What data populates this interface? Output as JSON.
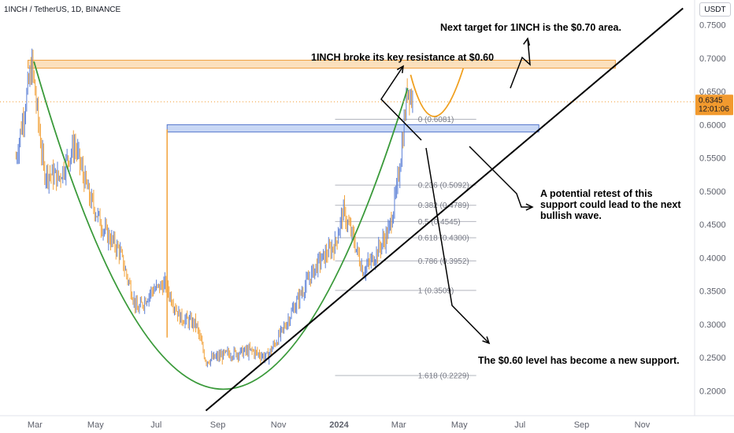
{
  "header": {
    "title": "1INCH / TetherUS, 1D, BINANCE",
    "unit": "USDT"
  },
  "price_tag": {
    "value": "0.6345",
    "countdown": "12:01:06"
  },
  "colors": {
    "up": "#5b7fd6",
    "down": "#f2a23a",
    "green_curve": "#3a9a3a",
    "orange_curve": "#f0a020",
    "resistance_box_fill": "#fbe0bd",
    "resistance_box_stroke": "#f0a040",
    "support_box_fill": "#c9d8f5",
    "support_box_stroke": "#5577cc",
    "trendline": "#000000",
    "price_tag_bg": "#f29a2e"
  },
  "annotations": {
    "next_target": "Next target for 1INCH is the $0.70 area.",
    "broke_resistance": "1INCH broke its key resistance at $0.60",
    "retest_line1": "A potential retest of this",
    "retest_line2": "support could lead to the next",
    "retest_line3": "bullish wave.",
    "new_support": "The $0.60 level has become a new support."
  },
  "chart_data": {
    "type": "candlestick",
    "title": "1INCH / TetherUS, 1D, BINANCE",
    "ylabel": "USDT",
    "ylim": [
      0.1625,
      0.7875
    ],
    "y_ticks": [
      "0.2000",
      "0.2500",
      "0.3000",
      "0.3500",
      "0.4000",
      "0.4500",
      "0.5000",
      "0.5500",
      "0.6000",
      "0.6500",
      "0.7000",
      "0.7500"
    ],
    "x_ticks": [
      "Mar",
      "May",
      "Jul",
      "Sep",
      "Nov",
      "2024",
      "Mar",
      "May",
      "Jul",
      "Sep",
      "Nov"
    ],
    "last_price": 0.6345,
    "price_path": [
      {
        "date": "2023-02-10",
        "price": 0.55
      },
      {
        "date": "2023-02-26",
        "price": 0.69
      },
      {
        "date": "2023-03-10",
        "price": 0.53
      },
      {
        "date": "2023-03-25",
        "price": 0.52
      },
      {
        "date": "2023-04-10",
        "price": 0.57
      },
      {
        "date": "2023-04-25",
        "price": 0.49
      },
      {
        "date": "2023-05-10",
        "price": 0.44
      },
      {
        "date": "2023-05-25",
        "price": 0.41
      },
      {
        "date": "2023-06-12",
        "price": 0.32
      },
      {
        "date": "2023-06-26",
        "price": 0.35
      },
      {
        "date": "2023-07-10",
        "price": 0.36
      },
      {
        "date": "2023-07-25",
        "price": 0.31
      },
      {
        "date": "2023-08-10",
        "price": 0.3
      },
      {
        "date": "2023-08-20",
        "price": 0.245
      },
      {
        "date": "2023-09-10",
        "price": 0.255
      },
      {
        "date": "2023-10-05",
        "price": 0.26
      },
      {
        "date": "2023-10-20",
        "price": 0.25
      },
      {
        "date": "2023-11-05",
        "price": 0.29
      },
      {
        "date": "2023-11-25",
        "price": 0.35
      },
      {
        "date": "2023-12-10",
        "price": 0.39
      },
      {
        "date": "2023-12-28",
        "price": 0.42
      },
      {
        "date": "2024-01-05",
        "price": 0.47
      },
      {
        "date": "2024-01-15",
        "price": 0.43
      },
      {
        "date": "2024-01-25",
        "price": 0.38
      },
      {
        "date": "2024-02-05",
        "price": 0.4
      },
      {
        "date": "2024-02-20",
        "price": 0.44
      },
      {
        "date": "2024-02-28",
        "price": 0.5
      },
      {
        "date": "2024-03-05",
        "price": 0.58
      },
      {
        "date": "2024-03-10",
        "price": 0.66
      },
      {
        "date": "2024-03-15",
        "price": 0.6345
      }
    ],
    "fib_levels": [
      {
        "label": "0 (0.6081)",
        "price": 0.6081
      },
      {
        "label": "0.236 (0.5092)",
        "price": 0.5092
      },
      {
        "label": "0.382 (0.4789)",
        "price": 0.4789
      },
      {
        "label": "0.5 (0.4545)",
        "price": 0.4545
      },
      {
        "label": "0.618 (0.4300)",
        "price": 0.43
      },
      {
        "label": "0.786 (0.3952)",
        "price": 0.3952
      },
      {
        "label": "1 (0.3509)",
        "price": 0.3509
      },
      {
        "label": "1.618 (0.2229)",
        "price": 0.2229
      }
    ],
    "resistance_zone": [
      0.685,
      0.697
    ],
    "support_zone": [
      0.589,
      0.6
    ],
    "grid": false,
    "legend": "none"
  }
}
